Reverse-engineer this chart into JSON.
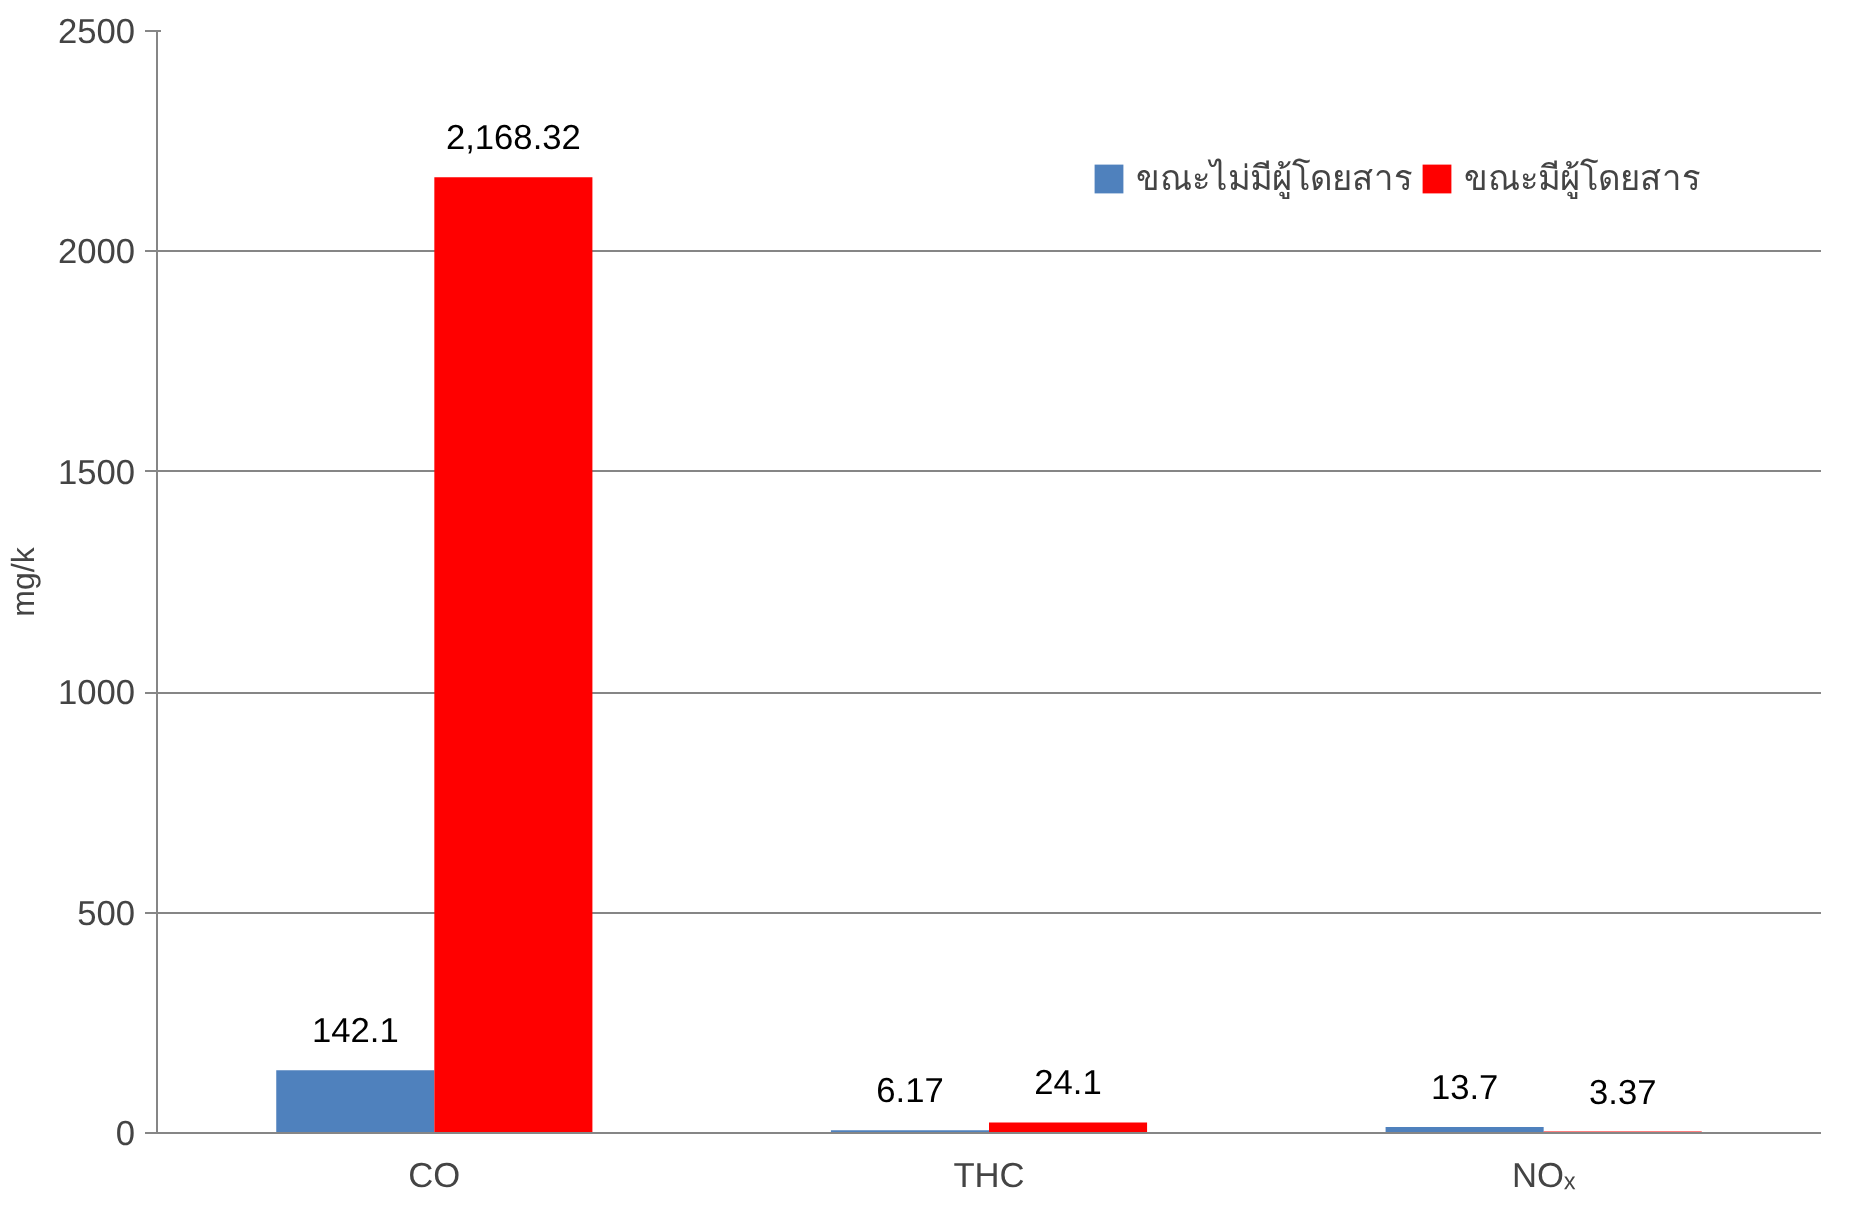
{
  "chart_data": {
    "type": "bar",
    "ylabel": "mg/k",
    "categories": [
      "CO",
      "THC",
      "NOₓ"
    ],
    "series": [
      {
        "name": "ขณะไม่มีผู้โดยสาร",
        "color": "#4f81bd",
        "values": [
          142.1,
          6.17,
          13.7
        ],
        "value_labels": [
          "142.1",
          "6.17",
          "13.7"
        ]
      },
      {
        "name": "ขณะมีผู้โดยสาร",
        "color": "#ff0000",
        "values": [
          2168.32,
          24.1,
          3.37
        ],
        "value_labels": [
          "2,168.32",
          "24.1",
          "3.37"
        ]
      }
    ],
    "ylim": [
      0,
      2500
    ],
    "yticks": [
      0,
      500,
      1000,
      1500,
      2000,
      2500
    ],
    "grid": "y",
    "legend": "top right"
  }
}
